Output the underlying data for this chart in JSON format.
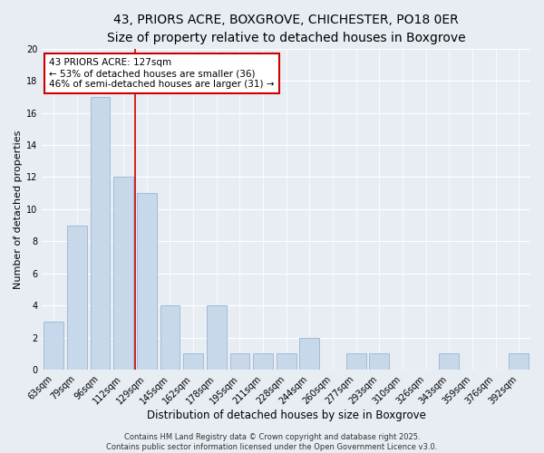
{
  "title": "43, PRIORS ACRE, BOXGROVE, CHICHESTER, PO18 0ER",
  "subtitle": "Size of property relative to detached houses in Boxgrove",
  "xlabel": "Distribution of detached houses by size in Boxgrove",
  "ylabel": "Number of detached properties",
  "bar_values": [
    3,
    9,
    17,
    12,
    11,
    4,
    1,
    4,
    1,
    1,
    1,
    2,
    0,
    1,
    1,
    0,
    0,
    1,
    0,
    0,
    1
  ],
  "bin_labels": [
    "63sqm",
    "79sqm",
    "96sqm",
    "112sqm",
    "129sqm",
    "145sqm",
    "162sqm",
    "178sqm",
    "195sqm",
    "211sqm",
    "228sqm",
    "244sqm",
    "260sqm",
    "277sqm",
    "293sqm",
    "310sqm",
    "326sqm",
    "343sqm",
    "359sqm",
    "376sqm",
    "392sqm"
  ],
  "bar_color": "#c8d8eb",
  "bar_edge_color": "#9ab4d0",
  "background_color": "#e8edf4",
  "grid_color": "#ffffff",
  "vline_x": 3.5,
  "vline_color": "#cc0000",
  "annotation_text": "43 PRIORS ACRE: 127sqm\n← 53% of detached houses are smaller (36)\n46% of semi-detached houses are larger (31) →",
  "annotation_box_color": "#ffffff",
  "annotation_box_edge_color": "#cc0000",
  "ylim": [
    0,
    20
  ],
  "yticks": [
    0,
    2,
    4,
    6,
    8,
    10,
    12,
    14,
    16,
    18,
    20
  ],
  "footer_text": "Contains HM Land Registry data © Crown copyright and database right 2025.\nContains public sector information licensed under the Open Government Licence v3.0.",
  "title_fontsize": 10,
  "subtitle_fontsize": 9,
  "xlabel_fontsize": 8.5,
  "ylabel_fontsize": 8,
  "tick_fontsize": 7,
  "annotation_fontsize": 7.5,
  "footer_fontsize": 6
}
